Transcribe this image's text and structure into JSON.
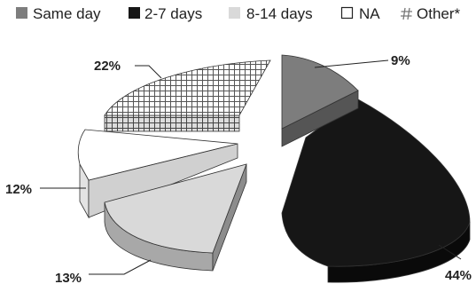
{
  "chart_data": {
    "type": "pie",
    "style": "3d-exploded",
    "legend_position": "top",
    "categories": [
      "Same day",
      "2-7 days",
      "8-14 days",
      "NA",
      "Other*"
    ],
    "values": [
      9,
      44,
      13,
      12,
      22
    ],
    "value_labels": [
      "9%",
      "44%",
      "13%",
      "12%",
      "22%"
    ],
    "colors": [
      "#7d7d7d",
      "#161616",
      "#d9d9d9",
      "#ffffff",
      "pattern-crosshatch"
    ],
    "legend_icons": [
      "square-filled-gray",
      "square-filled-black",
      "square-filled-lightgray",
      "square-outline",
      "hash-pattern"
    ]
  }
}
